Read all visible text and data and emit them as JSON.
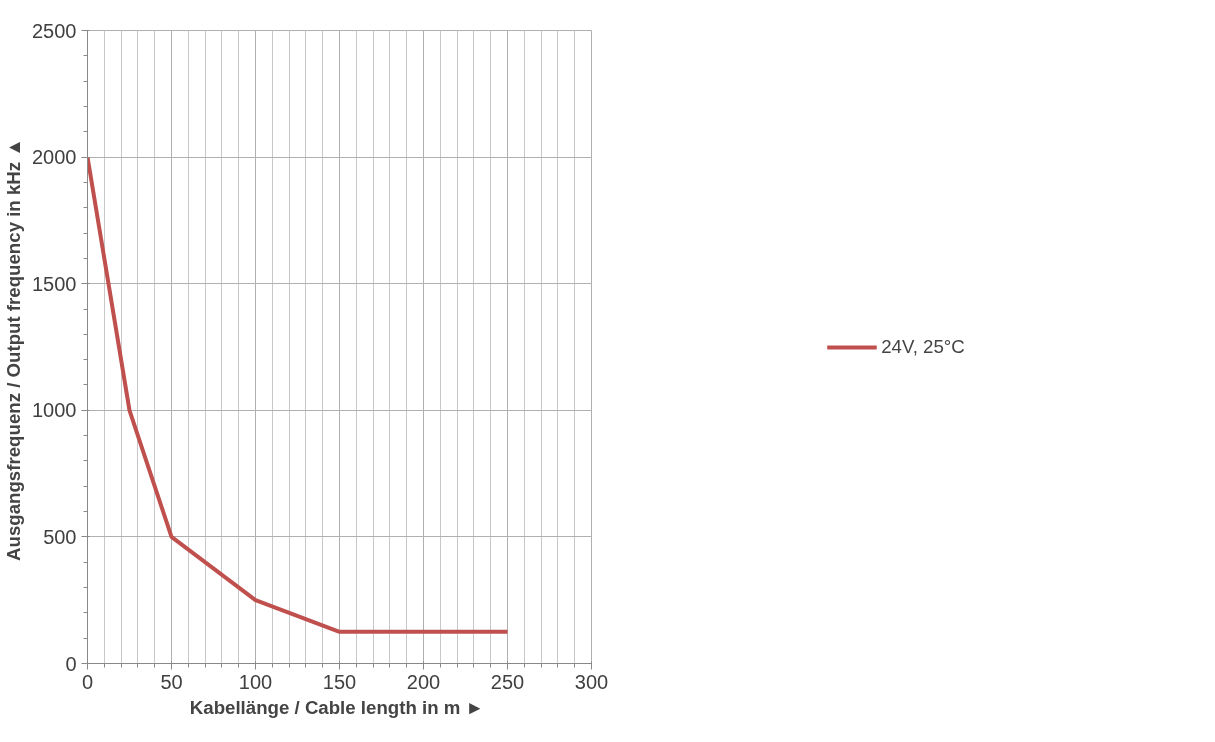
{
  "chart_data": {
    "type": "line",
    "xlabel": "Kabellänge / Cable length in m  ►",
    "ylabel": "Ausgangsfrequenz / Output frequency in kHz  ▲",
    "x": [
      0,
      25,
      50,
      100,
      150,
      250
    ],
    "series": [
      {
        "name": "24V, 25°C",
        "color": "#c0504d",
        "values": [
          2000,
          1000,
          500,
          250,
          125,
          125
        ]
      }
    ],
    "xlim": [
      0,
      300
    ],
    "xticks": [
      0,
      50,
      100,
      150,
      200,
      250,
      300
    ],
    "ylim": [
      0,
      2500
    ],
    "yticks": [
      0,
      500,
      1000,
      1500,
      2000,
      2500
    ],
    "grid": true,
    "legend": "right",
    "marker": "none",
    "line_style": "solid"
  }
}
